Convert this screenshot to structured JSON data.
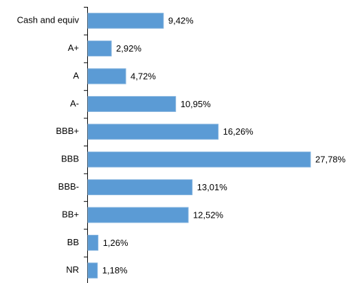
{
  "chart_data": {
    "type": "bar",
    "orientation": "horizontal",
    "categories": [
      "Cash and equiv",
      "A+",
      "A",
      "A-",
      "BBB+",
      "BBB",
      "BBB-",
      "BB+",
      "BB",
      "NR"
    ],
    "values": [
      9.42,
      2.92,
      4.72,
      10.95,
      16.26,
      27.78,
      13.01,
      12.52,
      1.26,
      1.18
    ],
    "value_labels": [
      "9,42%",
      "2,92%",
      "4,72%",
      "10,95%",
      "16,26%",
      "27,78%",
      "13,01%",
      "12,52%",
      "1,26%",
      "1,18%"
    ],
    "color": "#5b9bd5"
  }
}
